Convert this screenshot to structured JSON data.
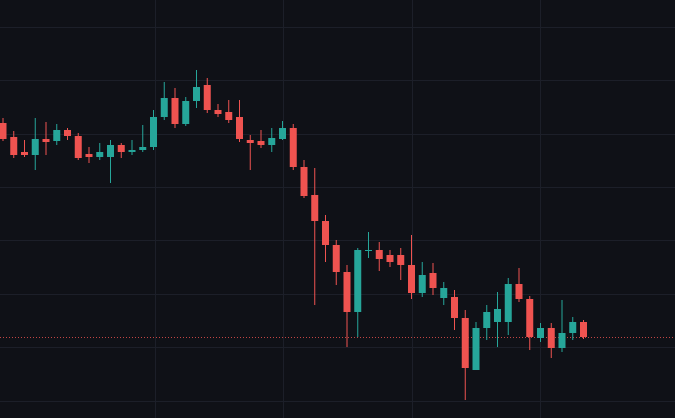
{
  "chart_data": {
    "type": "candlestick",
    "open": [
      295,
      281,
      266,
      263,
      279,
      277,
      288,
      282,
      264,
      261,
      261,
      273,
      266,
      268,
      271,
      301,
      320,
      294,
      317,
      333,
      308,
      306,
      301,
      278,
      277,
      273,
      279,
      290,
      251,
      223,
      197,
      173,
      146,
      106,
      167,
      168,
      163,
      163,
      153,
      125,
      145,
      120,
      121,
      100,
      48,
      90,
      96,
      96,
      134,
      119,
      80,
      90,
      70,
      85,
      96
    ],
    "high": [
      300,
      287,
      278,
      300,
      296,
      294,
      290,
      285,
      271,
      275,
      278,
      275,
      278,
      293,
      308,
      336,
      330,
      321,
      348,
      340,
      314,
      318,
      318,
      283,
      288,
      290,
      297,
      294,
      258,
      250,
      203,
      178,
      153,
      170,
      186,
      176,
      168,
      170,
      183,
      156,
      155,
      136,
      128,
      108,
      96,
      113,
      126,
      140,
      150,
      122,
      95,
      95,
      118,
      101,
      98
    ],
    "low": [
      277,
      260,
      261,
      248,
      263,
      273,
      278,
      258,
      255,
      258,
      235,
      260,
      263,
      266,
      268,
      298,
      290,
      292,
      310,
      305,
      301,
      295,
      276,
      248,
      270,
      266,
      278,
      248,
      220,
      113,
      156,
      133,
      71,
      81,
      160,
      147,
      151,
      138,
      119,
      121,
      123,
      113,
      88,
      18,
      48,
      78,
      71,
      83,
      116,
      68,
      76,
      60,
      66,
      78,
      79
    ],
    "close": [
      279,
      263,
      263,
      279,
      276,
      288,
      282,
      260,
      261,
      266,
      273,
      266,
      268,
      271,
      301,
      320,
      294,
      317,
      331,
      308,
      304,
      298,
      279,
      275,
      273,
      280,
      290,
      251,
      222,
      197,
      173,
      146,
      106,
      168,
      168,
      159,
      156,
      153,
      125,
      143,
      130,
      130,
      100,
      50,
      90,
      106,
      109,
      134,
      119,
      81,
      90,
      70,
      85,
      96,
      81
    ],
    "up_color": "#26a69a",
    "down_color": "#ef5350",
    "ylim": [
      0,
      418
    ],
    "yticks": [
      391,
      338,
      284,
      231,
      178,
      124,
      71,
      17
    ],
    "grid": true,
    "last_price_line": true
  }
}
